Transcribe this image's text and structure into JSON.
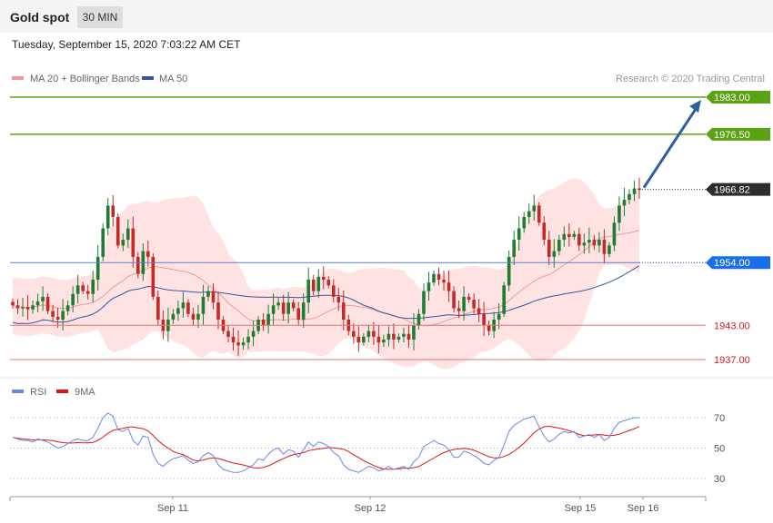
{
  "header": {
    "title": "Gold spot",
    "timeframe": "30 MIN",
    "datetime": "Tuesday, September 15, 2020 7:03:22 AM CET"
  },
  "legend": {
    "ma20": "MA 20 + Bollinger Bands",
    "ma50": "MA 50",
    "credit": "Research © 2020 Trading Central",
    "rsi": "RSI",
    "rsi_ma": "9MA"
  },
  "colors": {
    "up": "#1e7d32",
    "down": "#c62828",
    "ma20": "#f19999",
    "ma50": "#35569f",
    "band": "#ffe3e3",
    "green_level": "#5aa313",
    "blue_level": "#1a6fe8",
    "red_level": "#d61a1a",
    "current": "#2d2d2d",
    "arrow": "#2f5f9e",
    "rsi": "#6b87e6",
    "rsi_ma": "#e01414"
  },
  "chart_data": {
    "type": "candlestick",
    "x_ticks": [
      "Sep 11",
      "Sep 12",
      "Sep 15",
      "Sep 16"
    ],
    "price_levels": [
      {
        "value": 1983.0,
        "label": "1983.00",
        "kind": "target"
      },
      {
        "value": 1976.5,
        "label": "1976.50",
        "kind": "target"
      },
      {
        "value": 1966.82,
        "label": "1966.82",
        "kind": "current"
      },
      {
        "value": 1954.0,
        "label": "1954.00",
        "kind": "pivot"
      },
      {
        "value": 1943.0,
        "label": "1943.00",
        "kind": "support"
      },
      {
        "value": 1937.0,
        "label": "1937.00",
        "kind": "support"
      }
    ],
    "arrow": {
      "from": 1966.82,
      "to": 1983.0
    },
    "close": [
      1946.5,
      1946.0,
      1946.2,
      1945.8,
      1946.5,
      1947.2,
      1948.0,
      1945.5,
      1944.5,
      1944.0,
      1945.5,
      1946.5,
      1948.5,
      1950.0,
      1949.0,
      1948.5,
      1951.0,
      1955.0,
      1960.0,
      1964.0,
      1962.0,
      1957.0,
      1958.0,
      1960.0,
      1955.0,
      1952.0,
      1956.0,
      1955.0,
      1948.0,
      1944.0,
      1942.0,
      1944.0,
      1945.0,
      1946.0,
      1947.0,
      1945.0,
      1944.0,
      1945.0,
      1948.0,
      1949.0,
      1947.0,
      1944.0,
      1942.0,
      1941.0,
      1940.0,
      1939.5,
      1940.0,
      1941.0,
      1942.0,
      1944.0,
      1943.0,
      1945.0,
      1946.5,
      1947.0,
      1945.0,
      1947.0,
      1946.0,
      1944.0,
      1947.0,
      1951.0,
      1949.0,
      1951.5,
      1951.0,
      1950.0,
      1948.0,
      1947.0,
      1944.0,
      1942.0,
      1941.0,
      1940.0,
      1941.0,
      1942.0,
      1941.0,
      1940.0,
      1940.5,
      1941.5,
      1940.5,
      1941.0,
      1941.5,
      1940.5,
      1943.0,
      1945.0,
      1949.0,
      1950.5,
      1952.0,
      1951.0,
      1950.5,
      1949.0,
      1946.0,
      1945.5,
      1948.0,
      1947.5,
      1946.0,
      1945.0,
      1943.0,
      1942.0,
      1944.0,
      1945.0,
      1950.0,
      1955.0,
      1958.0,
      1960.0,
      1962.0,
      1963.0,
      1964.0,
      1961.0,
      1958.0,
      1955.0,
      1956.0,
      1958.0,
      1959.0,
      1958.5,
      1959.0,
      1957.0,
      1957.5,
      1958.0,
      1957.0,
      1958.0,
      1955.5,
      1957.0,
      1961.0,
      1964.0,
      1965.0,
      1966.0,
      1967.0,
      1966.82
    ],
    "rsi": [
      57,
      56,
      55,
      55,
      54,
      56,
      55,
      54,
      52,
      50,
      51,
      53,
      55,
      56,
      55,
      55,
      57,
      63,
      70,
      73,
      71,
      62,
      61,
      63,
      55,
      52,
      58,
      57,
      46,
      40,
      38,
      41,
      43,
      44,
      45,
      42,
      40,
      41,
      45,
      47,
      45,
      39,
      36,
      35,
      34,
      34,
      35,
      37,
      39,
      43,
      42,
      46,
      49,
      50,
      46,
      49,
      48,
      44,
      49,
      54,
      51,
      54,
      53,
      51,
      47,
      45,
      39,
      36,
      35,
      34,
      36,
      38,
      37,
      35,
      36,
      38,
      36,
      37,
      38,
      36,
      41,
      44,
      51,
      53,
      55,
      53,
      52,
      49,
      44,
      44,
      48,
      47,
      45,
      43,
      40,
      39,
      42,
      44,
      52,
      61,
      65,
      67,
      69,
      70,
      71,
      64,
      58,
      54,
      56,
      59,
      61,
      60,
      61,
      57,
      58,
      59,
      57,
      59,
      55,
      57,
      63,
      67,
      68,
      69,
      70,
      70
    ],
    "rsi_levels": [
      70,
      50,
      30
    ]
  }
}
